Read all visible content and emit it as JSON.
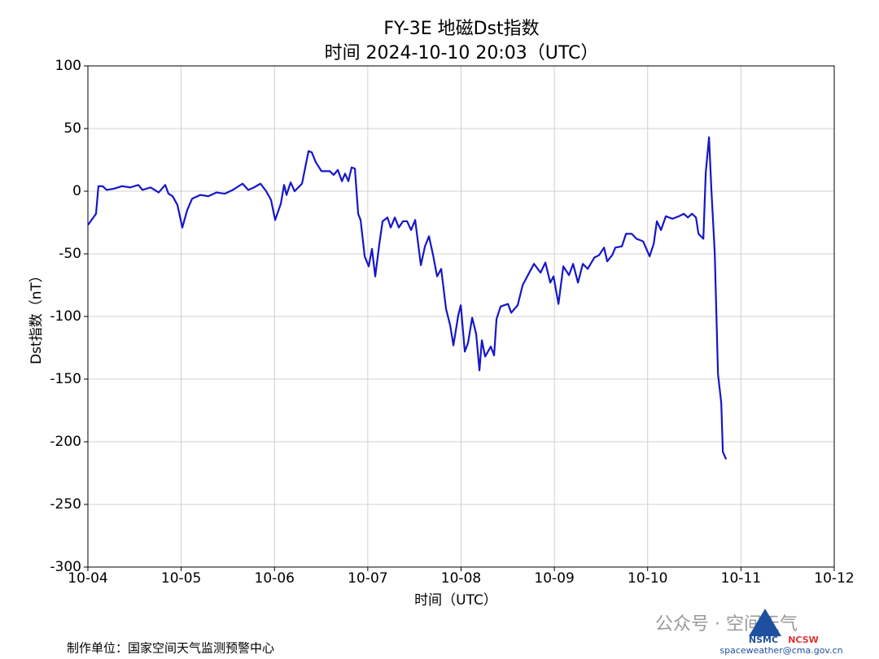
{
  "chart_data": {
    "type": "line",
    "title": "FY-3E 地磁Dst指数",
    "subtitle": "时间 2024-10-10 20:03（UTC）",
    "x_label": "时间（UTC）",
    "y_label": "Dst指数（nT）",
    "xlim": [
      0,
      8
    ],
    "xticks": [
      {
        "value": 0,
        "label": "10-04"
      },
      {
        "value": 1,
        "label": "10-05"
      },
      {
        "value": 2,
        "label": "10-06"
      },
      {
        "value": 3,
        "label": "10-07"
      },
      {
        "value": 4,
        "label": "10-08"
      },
      {
        "value": 5,
        "label": "10-09"
      },
      {
        "value": 6,
        "label": "10-10"
      },
      {
        "value": 7,
        "label": "10-11"
      },
      {
        "value": 8,
        "label": "10-12"
      }
    ],
    "ylim": [
      -300,
      100
    ],
    "yticks": [
      -300,
      -250,
      -200,
      -150,
      -100,
      -50,
      0,
      50,
      100
    ],
    "grid": true,
    "series": [
      {
        "color": "#1616c8",
        "x": [
          0,
          0.087,
          0.113,
          0.157,
          0.201,
          0.279,
          0.366,
          0.454,
          0.541,
          0.585,
          0.672,
          0.759,
          0.829,
          0.864,
          0.908,
          0.96,
          1.012,
          1.065,
          1.117,
          1.204,
          1.292,
          1.379,
          1.466,
          1.553,
          1.658,
          1.719,
          1.78,
          1.85,
          1.911,
          1.963,
          2.007,
          2.068,
          2.103,
          2.129,
          2.173,
          2.216,
          2.295,
          2.365,
          2.4,
          2.443,
          2.504,
          2.592,
          2.635,
          2.679,
          2.723,
          2.757,
          2.792,
          2.827,
          2.862,
          2.897,
          2.923,
          2.967,
          3.01,
          3.045,
          3.08,
          3.124,
          3.159,
          3.211,
          3.246,
          3.29,
          3.333,
          3.377,
          3.421,
          3.464,
          3.508,
          3.569,
          3.613,
          3.656,
          3.7,
          3.743,
          3.787,
          3.839,
          3.883,
          3.918,
          3.97,
          3.997,
          4.04,
          4.075,
          4.119,
          4.162,
          4.197,
          4.223,
          4.258,
          4.319,
          4.354,
          4.38,
          4.424,
          4.503,
          4.538,
          4.607,
          4.66,
          4.738,
          4.782,
          4.852,
          4.904,
          4.956,
          4.991,
          5.044,
          5.096,
          5.157,
          5.201,
          5.253,
          5.305,
          5.358,
          5.428,
          5.48,
          5.532,
          5.567,
          5.62,
          5.654,
          5.724,
          5.768,
          5.829,
          5.881,
          5.951,
          6.021,
          6.065,
          6.099,
          6.143,
          6.195,
          6.265,
          6.335,
          6.387,
          6.431,
          6.475,
          6.518,
          6.545,
          6.597,
          6.623,
          6.658,
          6.684,
          6.719,
          6.754,
          6.789,
          6.806,
          6.841
        ],
        "values": [
          -27,
          -18,
          4,
          4,
          1,
          2,
          4,
          3,
          5,
          1,
          3,
          -1,
          5,
          -2,
          -4,
          -11,
          -29,
          -15,
          -6,
          -3,
          -4,
          -1,
          -2,
          1,
          6,
          1,
          3,
          6,
          0,
          -7,
          -23,
          -10,
          5,
          -3,
          7,
          0,
          6,
          32,
          31,
          23,
          16,
          16,
          13,
          17,
          8,
          14,
          8,
          19,
          18,
          -18,
          -23,
          -52,
          -60,
          -46,
          -68,
          -42,
          -24,
          -21,
          -29,
          -21,
          -29,
          -24,
          -24,
          -31,
          -23,
          -59,
          -44,
          -36,
          -51,
          -68,
          -62,
          -94,
          -107,
          -123,
          -99,
          -91,
          -128,
          -121,
          -101,
          -114,
          -143,
          -119,
          -132,
          -124,
          -131,
          -102,
          -92,
          -90,
          -97,
          -91,
          -75,
          -64,
          -58,
          -65,
          -57,
          -73,
          -68,
          -90,
          -60,
          -67,
          -58,
          -73,
          -58,
          -62,
          -53,
          -51,
          -45,
          -56,
          -51,
          -45,
          -44,
          -34,
          -34,
          -38,
          -40,
          -52,
          -42,
          -24,
          -31,
          -20,
          -22,
          -20,
          -18,
          -21,
          -18,
          -21,
          -34,
          -38,
          15,
          43,
          0,
          -49,
          -146,
          -169,
          -208,
          -214
        ]
      }
    ]
  },
  "footer": "制作单位：国家空间天气监测预警中心",
  "watermark": "公众号 · 空间天气",
  "logos": [
    "NSMC",
    "NCSW"
  ],
  "email": "spaceweather@cma.gov.cn"
}
